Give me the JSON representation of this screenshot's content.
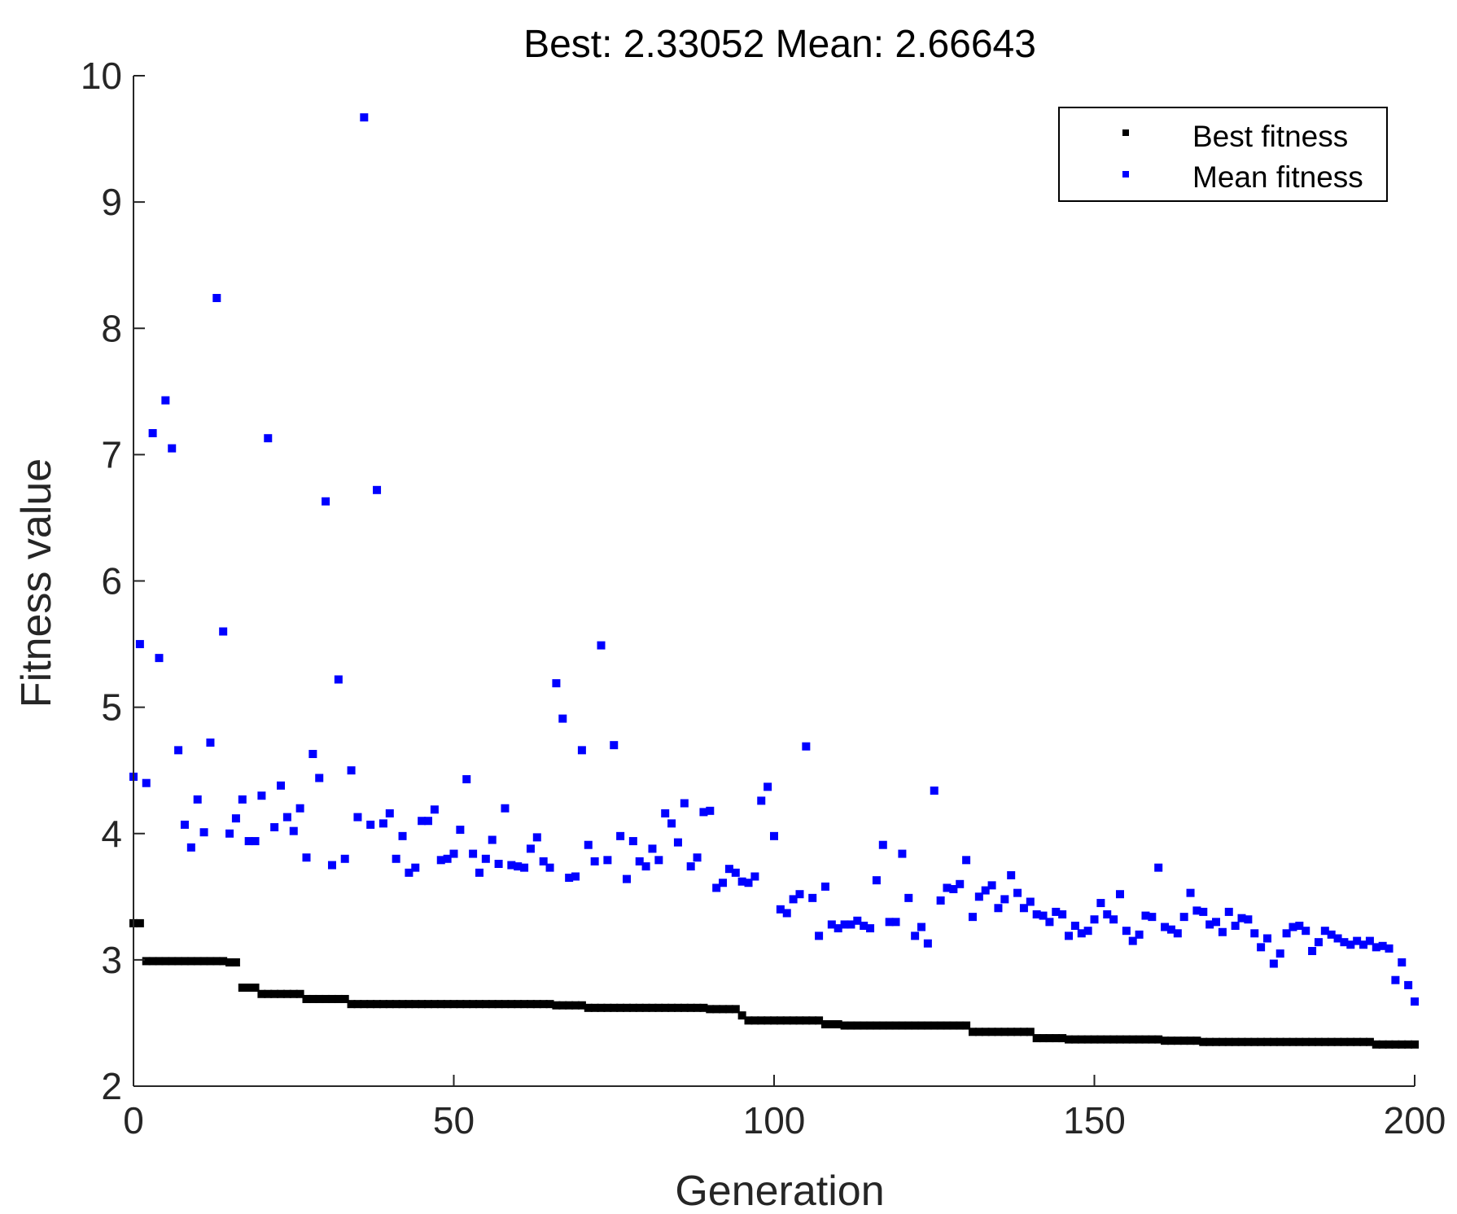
{
  "chart_data": {
    "type": "scatter",
    "title_parts": {
      "best_label": "Best:",
      "best_value": "2.33052",
      "mean_label": "Mean:",
      "mean_value": "2.66643"
    },
    "xlabel": "Generation",
    "ylabel": "Fitness value",
    "xlim": [
      0,
      200
    ],
    "ylim": [
      2,
      10
    ],
    "xticks": [
      0,
      50,
      100,
      150,
      200
    ],
    "yticks": [
      2,
      3,
      4,
      5,
      6,
      7,
      8,
      9,
      10
    ],
    "grid": false,
    "legend_position": "top-right",
    "series": [
      {
        "name": "Best fitness",
        "color": "#000000",
        "segments": [
          {
            "from": 0,
            "to": 1,
            "value": 3.29
          },
          {
            "from": 2,
            "to": 14,
            "value": 2.99
          },
          {
            "from": 15,
            "to": 16,
            "value": 2.98
          },
          {
            "from": 17,
            "to": 19,
            "value": 2.78
          },
          {
            "from": 20,
            "to": 26,
            "value": 2.73
          },
          {
            "from": 27,
            "to": 33,
            "value": 2.69
          },
          {
            "from": 34,
            "to": 65,
            "value": 2.65
          },
          {
            "from": 66,
            "to": 70,
            "value": 2.64
          },
          {
            "from": 71,
            "to": 89,
            "value": 2.62
          },
          {
            "from": 90,
            "to": 94,
            "value": 2.61
          },
          {
            "from": 95,
            "to": 95,
            "value": 2.56
          },
          {
            "from": 96,
            "to": 107,
            "value": 2.52
          },
          {
            "from": 108,
            "to": 110,
            "value": 2.49
          },
          {
            "from": 111,
            "to": 130,
            "value": 2.48
          },
          {
            "from": 131,
            "to": 140,
            "value": 2.43
          },
          {
            "from": 141,
            "to": 145,
            "value": 2.38
          },
          {
            "from": 146,
            "to": 160,
            "value": 2.37
          },
          {
            "from": 161,
            "to": 166,
            "value": 2.36
          },
          {
            "from": 167,
            "to": 193,
            "value": 2.35
          },
          {
            "from": 194,
            "to": 200,
            "value": 2.33
          }
        ]
      },
      {
        "name": "Mean fitness",
        "color": "#0000ff",
        "x": [
          0,
          1,
          2,
          3,
          4,
          5,
          6,
          7,
          8,
          9,
          10,
          11,
          12,
          13,
          14,
          15,
          16,
          17,
          18,
          19,
          20,
          21,
          22,
          23,
          24,
          25,
          26,
          27,
          28,
          29,
          30,
          31,
          32,
          33,
          34,
          35,
          36,
          37,
          38,
          39,
          40,
          41,
          42,
          43,
          44,
          45,
          46,
          47,
          48,
          49,
          50,
          51,
          52,
          53,
          54,
          55,
          56,
          57,
          58,
          59,
          60,
          61,
          62,
          63,
          64,
          65,
          66,
          67,
          68,
          69,
          70,
          71,
          72,
          73,
          74,
          75,
          76,
          77,
          78,
          79,
          80,
          81,
          82,
          83,
          84,
          85,
          86,
          87,
          88,
          89,
          90,
          91,
          92,
          93,
          94,
          95,
          96,
          97,
          98,
          99,
          100,
          101,
          102,
          103,
          104,
          105,
          106,
          107,
          108,
          109,
          110,
          111,
          112,
          113,
          114,
          115,
          116,
          117,
          118,
          119,
          120,
          121,
          122,
          123,
          124,
          125,
          126,
          127,
          128,
          129,
          130,
          131,
          132,
          133,
          134,
          135,
          136,
          137,
          138,
          139,
          140,
          141,
          142,
          143,
          144,
          145,
          146,
          147,
          148,
          149,
          150,
          151,
          152,
          153,
          154,
          155,
          156,
          157,
          158,
          159,
          160,
          161,
          162,
          163,
          164,
          165,
          166,
          167,
          168,
          169,
          170,
          171,
          172,
          173,
          174,
          175,
          176,
          177,
          178,
          179,
          180,
          181,
          182,
          183,
          184,
          185,
          186,
          187,
          188,
          189,
          190,
          191,
          192,
          193,
          194,
          195,
          196,
          197,
          198,
          199,
          200
        ],
        "y": [
          4.45,
          5.5,
          4.4,
          7.17,
          5.39,
          7.43,
          7.05,
          4.66,
          4.07,
          3.89,
          4.27,
          4.01,
          4.72,
          8.24,
          5.6,
          4.0,
          4.12,
          4.27,
          3.94,
          3.94,
          4.3,
          7.13,
          4.05,
          4.38,
          4.13,
          4.02,
          4.2,
          3.81,
          4.63,
          4.44,
          6.63,
          3.75,
          5.22,
          3.8,
          4.5,
          4.13,
          9.67,
          4.07,
          6.72,
          4.08,
          4.16,
          3.8,
          3.98,
          3.69,
          3.73,
          4.1,
          4.1,
          4.19,
          3.79,
          3.8,
          3.84,
          4.03,
          4.43,
          3.84,
          3.69,
          3.8,
          3.95,
          3.76,
          4.2,
          3.75,
          3.74,
          3.73,
          3.88,
          3.97,
          3.78,
          3.73,
          5.19,
          4.91,
          3.65,
          3.66,
          4.66,
          3.91,
          3.78,
          5.49,
          3.79,
          4.7,
          3.98,
          3.64,
          3.94,
          3.78,
          3.74,
          3.88,
          3.79,
          4.16,
          4.08,
          3.93,
          4.24,
          3.74,
          3.81,
          4.17,
          4.18,
          3.57,
          3.61,
          3.72,
          3.69,
          3.62,
          3.61,
          3.66,
          4.26,
          4.37,
          3.98,
          3.4,
          3.37,
          3.48,
          3.52,
          4.69,
          3.49,
          3.19,
          3.58,
          3.28,
          3.25,
          3.28,
          3.28,
          3.31,
          3.27,
          3.25,
          3.63,
          3.91,
          3.3,
          3.3,
          3.84,
          3.49,
          3.19,
          3.26,
          3.13,
          4.34,
          3.47,
          3.57,
          3.56,
          3.6,
          3.79,
          3.34,
          3.5,
          3.55,
          3.59,
          3.41,
          3.48,
          3.67,
          3.53,
          3.41,
          3.46,
          3.36,
          3.35,
          3.3,
          3.38,
          3.36,
          3.19,
          3.27,
          3.21,
          3.23,
          3.32,
          3.45,
          3.36,
          3.32,
          3.52,
          3.23,
          3.15,
          3.2,
          3.35,
          3.34,
          3.73,
          3.26,
          3.24,
          3.21,
          3.34,
          3.53,
          3.39,
          3.38,
          3.28,
          3.3,
          3.22,
          3.38,
          3.27,
          3.33,
          3.32,
          3.21,
          3.1,
          3.17,
          2.97,
          3.05,
          3.21,
          3.26,
          3.27,
          3.23,
          3.07,
          3.14,
          3.23,
          3.2,
          3.17,
          3.14,
          3.12,
          3.15,
          3.12,
          3.15,
          3.1,
          3.11,
          3.09,
          2.84,
          2.98,
          2.8,
          2.67
        ]
      }
    ]
  }
}
